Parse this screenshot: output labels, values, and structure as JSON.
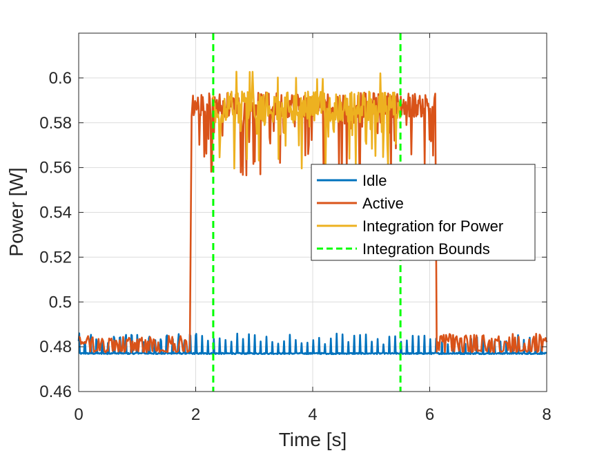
{
  "chart_data": {
    "type": "line",
    "xlabel": "Time [s]",
    "ylabel": "Power [W]",
    "xlim": [
      0,
      8
    ],
    "ylim": [
      0.46,
      0.62
    ],
    "xticks": [
      "0",
      "2",
      "4",
      "6",
      "8"
    ],
    "yticks": [
      "0.46",
      "0.48",
      "0.5",
      "0.52",
      "0.54",
      "0.56",
      "0.58",
      "0.6"
    ],
    "xtick_values": [
      0,
      2,
      4,
      6,
      8
    ],
    "ytick_values": [
      0.46,
      0.48,
      0.5,
      0.52,
      0.54,
      0.56,
      0.58,
      0.6
    ],
    "grid": true,
    "legend_position": "center-right",
    "series": [
      {
        "name": "Idle",
        "color": "#0072BD",
        "style": "solid",
        "baseline": 0.477,
        "x_range": [
          0,
          8
        ],
        "spike_period_s": 0.1,
        "spike_peak_range": [
          0.481,
          0.486
        ]
      },
      {
        "name": "Active",
        "color": "#D95319",
        "style": "solid",
        "segments": [
          {
            "x_range": [
              0,
              1.9
            ],
            "level": 0.478,
            "peak_range": [
              0.481,
              0.485
            ]
          },
          {
            "x_range": [
              1.93,
              6.1
            ],
            "level": 0.588,
            "peak_range": [
              0.556,
              0.595
            ]
          },
          {
            "x_range": [
              6.12,
              8
            ],
            "level": 0.478,
            "peak_range": [
              0.481,
              0.486
            ]
          }
        ]
      },
      {
        "name": "Integration for Power",
        "color": "#EDB120",
        "style": "solid",
        "x_range": [
          2.3,
          5.5
        ],
        "level": 0.587,
        "range": [
          0.557,
          0.603
        ]
      },
      {
        "name": "Integration Bounds",
        "color": "#00FF00",
        "style": "dashed",
        "x": [
          2.3,
          5.5
        ]
      }
    ]
  }
}
